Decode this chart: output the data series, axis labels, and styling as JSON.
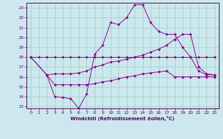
{
  "bg_color": "#cce8ee",
  "grid_color": "#99ccbb",
  "line_color": "#880088",
  "xlabel": "Windchill (Refroidissement éolien,°C)",
  "xlim": [
    -0.5,
    23.5
  ],
  "ylim": [
    12.8,
    23.5
  ],
  "xticks": [
    0,
    1,
    2,
    3,
    4,
    5,
    6,
    7,
    8,
    9,
    10,
    11,
    12,
    13,
    14,
    15,
    16,
    17,
    18,
    19,
    20,
    21,
    22,
    23
  ],
  "yticks": [
    13,
    14,
    15,
    16,
    17,
    18,
    19,
    20,
    21,
    22,
    23
  ],
  "line1_x": [
    0,
    1,
    2,
    3,
    4,
    5,
    6,
    7,
    8,
    9,
    10,
    11,
    12,
    13,
    14,
    15,
    16,
    17,
    18,
    19,
    20,
    21,
    22,
    23
  ],
  "line1_y": [
    18.0,
    18.0,
    18.0,
    18.0,
    18.0,
    18.0,
    18.0,
    18.0,
    18.0,
    18.0,
    18.0,
    18.0,
    18.0,
    18.0,
    18.0,
    18.0,
    18.0,
    18.0,
    18.0,
    18.0,
    18.0,
    18.0,
    18.0,
    18.0
  ],
  "line2_x": [
    2,
    3,
    4,
    5,
    6,
    7,
    8,
    9,
    10,
    11,
    12,
    13,
    14,
    15,
    16,
    17,
    18,
    19,
    20,
    21,
    22,
    23
  ],
  "line2_y": [
    16.2,
    14.0,
    13.9,
    13.8,
    12.8,
    14.3,
    18.3,
    19.2,
    21.5,
    21.3,
    22.0,
    23.3,
    23.3,
    21.5,
    20.6,
    20.3,
    20.3,
    19.0,
    18.0,
    16.6,
    16.2,
    16.2
  ],
  "line3_x": [
    0,
    2,
    3,
    4,
    5,
    6,
    7,
    8,
    9,
    10,
    11,
    12,
    13,
    14,
    15,
    16,
    17,
    18,
    19,
    20,
    21,
    22,
    23
  ],
  "line3_y": [
    18.0,
    16.2,
    15.2,
    15.2,
    15.2,
    15.2,
    15.2,
    15.3,
    15.5,
    15.6,
    15.8,
    16.0,
    16.1,
    16.3,
    16.4,
    16.5,
    16.6,
    16.0,
    16.0,
    16.0,
    16.0,
    16.0,
    16.0
  ],
  "line4_x": [
    0,
    2,
    3,
    4,
    5,
    6,
    7,
    8,
    9,
    10,
    11,
    12,
    13,
    14,
    15,
    16,
    17,
    18,
    19,
    20,
    21,
    22,
    23
  ],
  "line4_y": [
    18.0,
    16.2,
    16.3,
    16.3,
    16.3,
    16.4,
    16.6,
    17.0,
    17.2,
    17.5,
    17.6,
    17.8,
    18.0,
    18.2,
    18.5,
    18.8,
    19.2,
    19.8,
    20.3,
    20.3,
    17.0,
    16.3,
    16.2
  ]
}
